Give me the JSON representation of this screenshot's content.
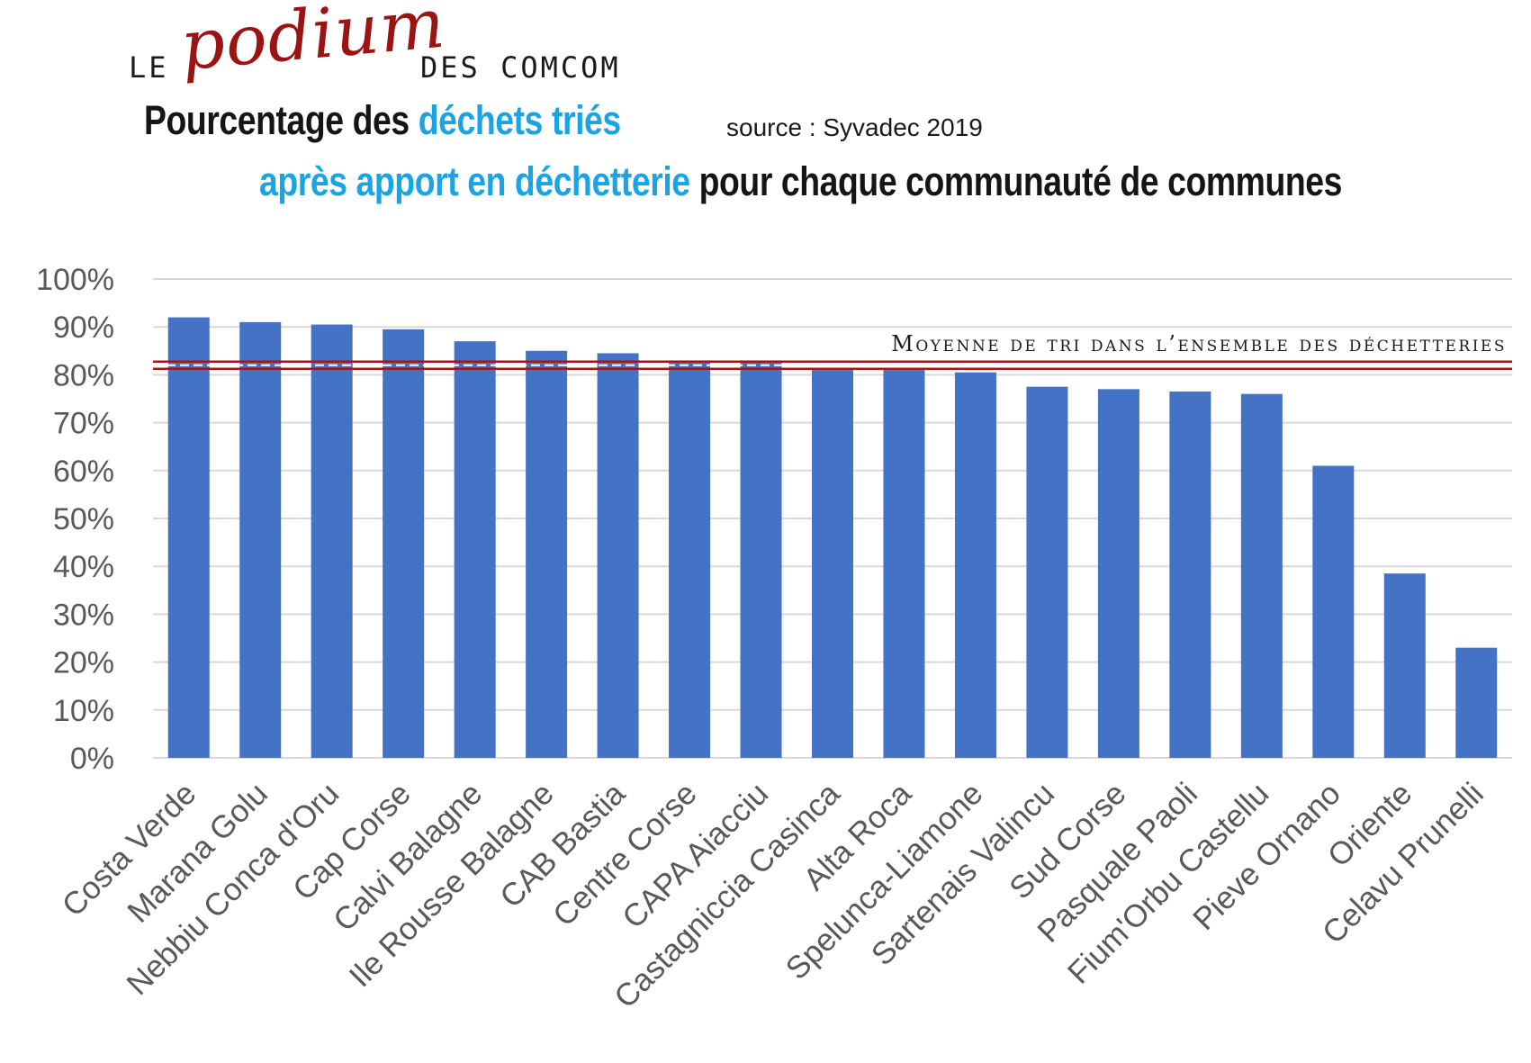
{
  "header": {
    "le": "LE",
    "podium": "podium",
    "des_comcom": "DES COMCOM",
    "line1_part1": "Pourcentage des",
    "line1_highlight": "déchets triés",
    "source": "source : Syvadec 2019",
    "line2_highlight": "après apport en déchetterie",
    "line2_part2": "pour chaque communauté de communes"
  },
  "colors": {
    "bar": "#4472c4",
    "average_line": "#a01818",
    "grid": "#d9d9d9",
    "podium": "#9b1414",
    "highlight": "#1aa4e4"
  },
  "chart_data": {
    "type": "bar",
    "categories": [
      "Costa Verde",
      "Marana Golu",
      "Nebbiu Conca d'Oru",
      "Cap Corse",
      "Calvi Balagne",
      "Ile Rousse Balagne",
      "CAB Bastia",
      "Centre Corse",
      "CAPA Aiacciu",
      "Castagniccia Casinca",
      "Alta Roca",
      "Spelunca-Liamone",
      "Sartenais Valincu",
      "Sud Corse",
      "Pasquale Paoli",
      "Fium'Orbu Castellu",
      "Pieve Ornano",
      "Oriente",
      "Celavu Prunelli"
    ],
    "values": [
      0.92,
      0.91,
      0.905,
      0.895,
      0.87,
      0.85,
      0.845,
      0.83,
      0.83,
      0.81,
      0.81,
      0.805,
      0.775,
      0.77,
      0.765,
      0.76,
      0.61,
      0.385,
      0.23
    ],
    "ylim": [
      0,
      1
    ],
    "y_ticks": [
      "0%",
      "10%",
      "20%",
      "30%",
      "40%",
      "50%",
      "60%",
      "70%",
      "80%",
      "90%",
      "100%"
    ],
    "grid": true,
    "average": {
      "label": "Moyenne de tri dans l’ensemble des déchetteries",
      "value": 0.82
    }
  }
}
